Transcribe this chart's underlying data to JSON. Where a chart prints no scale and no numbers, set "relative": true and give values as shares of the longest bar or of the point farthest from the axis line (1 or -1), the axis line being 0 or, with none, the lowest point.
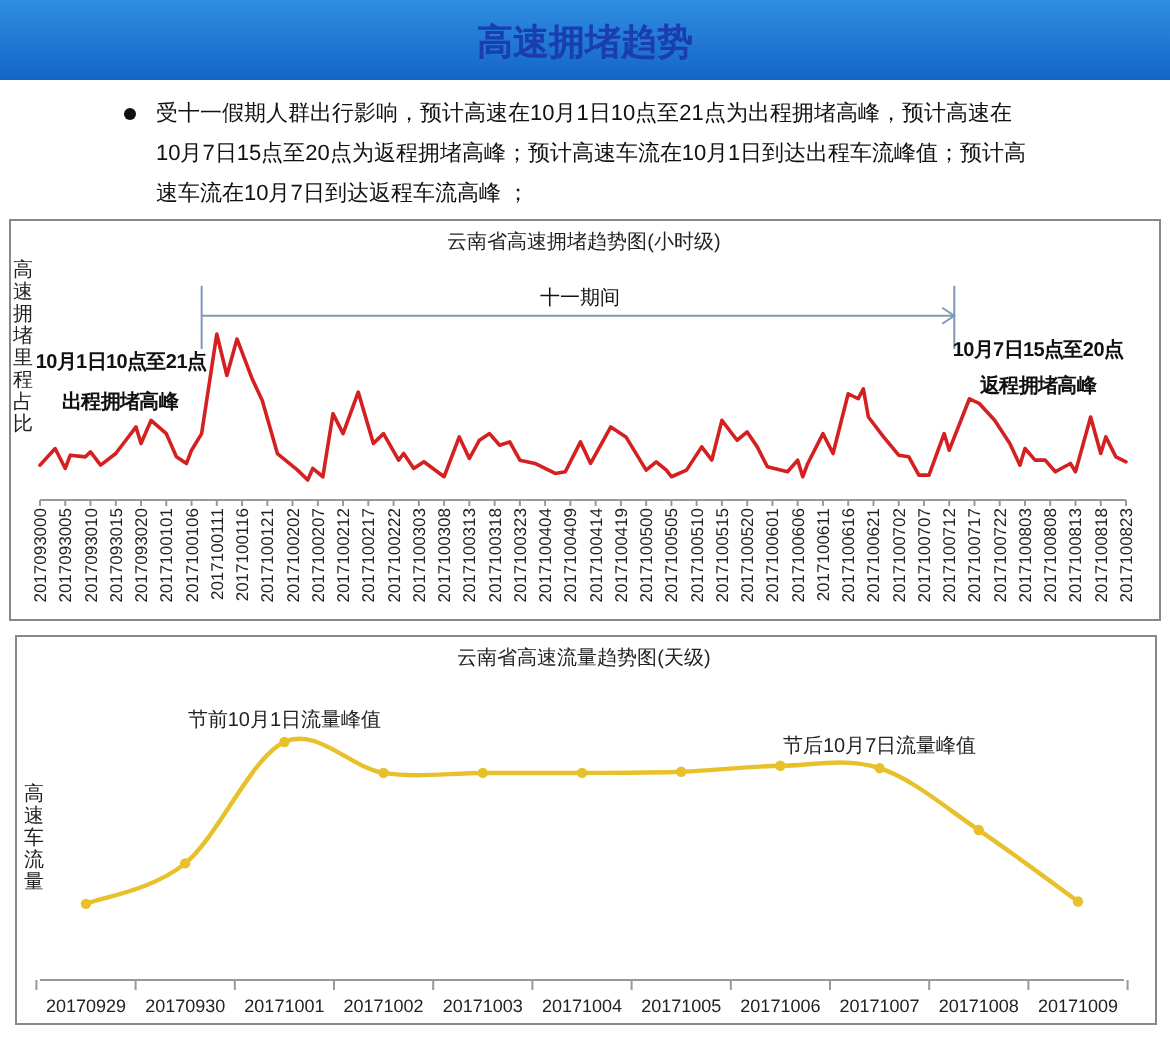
{
  "chart_data": [
    {
      "type": "other",
      "title": "高速拥堵趋势",
      "annotations": [
        "受十一假期人群出行影响，预计高速在10月1日10点至21点为出程拥堵高峰，预计高速在10月7日15点至20点为返程拥堵高峰；预计高速车流在10月1日到达出程车流峰值；预计高速车流在10月7日到达返程车流高峰 ；"
      ]
    },
    {
      "type": "line",
      "title": "云南省高速拥堵趋势图(小时级)",
      "ylabel": "高速拥堵里程占比",
      "relative": true,
      "marker": "none",
      "xlim": [
        "2017-09-30T00:00",
        "2017-10-08T23:00"
      ],
      "xticks": [
        {
          "value": "2017-09-30T00:00",
          "label": "2017093000"
        },
        {
          "value": "2017-09-30T05:00",
          "label": "2017093005"
        },
        {
          "value": "2017-09-30T10:00",
          "label": "2017093010"
        },
        {
          "value": "2017-09-30T15:00",
          "label": "2017093015"
        },
        {
          "value": "2017-09-30T20:00",
          "label": "2017093020"
        },
        {
          "value": "2017-10-01T01:00",
          "label": "2017100101"
        },
        {
          "value": "2017-10-01T06:00",
          "label": "2017100106"
        },
        {
          "value": "2017-10-01T11:00",
          "label": "2017100111"
        },
        {
          "value": "2017-10-01T16:00",
          "label": "2017100116"
        },
        {
          "value": "2017-10-01T21:00",
          "label": "2017100121"
        },
        {
          "value": "2017-10-02T02:00",
          "label": "2017100202"
        },
        {
          "value": "2017-10-02T07:00",
          "label": "2017100207"
        },
        {
          "value": "2017-10-02T12:00",
          "label": "2017100212"
        },
        {
          "value": "2017-10-02T17:00",
          "label": "2017100217"
        },
        {
          "value": "2017-10-02T22:00",
          "label": "2017100222"
        },
        {
          "value": "2017-10-03T03:00",
          "label": "2017100303"
        },
        {
          "value": "2017-10-03T08:00",
          "label": "2017100308"
        },
        {
          "value": "2017-10-03T13:00",
          "label": "2017100313"
        },
        {
          "value": "2017-10-03T18:00",
          "label": "2017100318"
        },
        {
          "value": "2017-10-03T23:00",
          "label": "2017100323"
        },
        {
          "value": "2017-10-04T04:00",
          "label": "2017100404"
        },
        {
          "value": "2017-10-04T09:00",
          "label": "2017100409"
        },
        {
          "value": "2017-10-04T14:00",
          "label": "2017100414"
        },
        {
          "value": "2017-10-04T19:00",
          "label": "2017100419"
        },
        {
          "value": "2017-10-05T00:00",
          "label": "2017100500"
        },
        {
          "value": "2017-10-05T05:00",
          "label": "2017100505"
        },
        {
          "value": "2017-10-05T10:00",
          "label": "2017100510"
        },
        {
          "value": "2017-10-05T15:00",
          "label": "2017100515"
        },
        {
          "value": "2017-10-05T20:00",
          "label": "2017100520"
        },
        {
          "value": "2017-10-06T01:00",
          "label": "2017100601"
        },
        {
          "value": "2017-10-06T06:00",
          "label": "2017100606"
        },
        {
          "value": "2017-10-06T11:00",
          "label": "2017100611"
        },
        {
          "value": "2017-10-06T16:00",
          "label": "2017100616"
        },
        {
          "value": "2017-10-06T21:00",
          "label": "2017100621"
        },
        {
          "value": "2017-10-07T02:00",
          "label": "2017100702"
        },
        {
          "value": "2017-10-07T07:00",
          "label": "2017100707"
        },
        {
          "value": "2017-10-07T12:00",
          "label": "2017100712"
        },
        {
          "value": "2017-10-07T17:00",
          "label": "2017100717"
        },
        {
          "value": "2017-10-07T22:00",
          "label": "2017100722"
        },
        {
          "value": "2017-10-08T03:00",
          "label": "2017100803"
        },
        {
          "value": "2017-10-08T08:00",
          "label": "2017100808"
        },
        {
          "value": "2017-10-08T13:00",
          "label": "2017100813"
        },
        {
          "value": "2017-10-08T18:00",
          "label": "2017100818"
        },
        {
          "value": "2017-10-08T23:00",
          "label": "2017100823"
        }
      ],
      "series": [
        {
          "color": "#d42020",
          "x": [
            "2017-09-30T00:00",
            "2017-09-30T03:00",
            "2017-09-30T05:00",
            "2017-09-30T06:00",
            "2017-09-30T09:00",
            "2017-09-30T10:00",
            "2017-09-30T12:00",
            "2017-09-30T15:00",
            "2017-09-30T17:00",
            "2017-09-30T19:00",
            "2017-09-30T20:00",
            "2017-09-30T22:00",
            "2017-10-01T01:00",
            "2017-10-01T03:00",
            "2017-10-01T05:00",
            "2017-10-01T06:00",
            "2017-10-01T08:00",
            "2017-10-01T11:00",
            "2017-10-01T13:00",
            "2017-10-01T15:00",
            "2017-10-01T18:00",
            "2017-10-01T20:00",
            "2017-10-01T23:00",
            "2017-10-02T01:00",
            "2017-10-02T03:00",
            "2017-10-02T05:00",
            "2017-10-02T06:00",
            "2017-10-02T08:00",
            "2017-10-02T10:00",
            "2017-10-02T12:00",
            "2017-10-02T15:00",
            "2017-10-02T18:00",
            "2017-10-02T20:00",
            "2017-10-02T23:00",
            "2017-10-03T00:00",
            "2017-10-03T02:00",
            "2017-10-03T04:00",
            "2017-10-03T08:00",
            "2017-10-03T11:00",
            "2017-10-03T13:00",
            "2017-10-03T15:00",
            "2017-10-03T17:00",
            "2017-10-03T19:00",
            "2017-10-03T21:00",
            "2017-10-03T23:00",
            "2017-10-04T02:00",
            "2017-10-04T04:00",
            "2017-10-04T06:00",
            "2017-10-04T08:00",
            "2017-10-04T11:00",
            "2017-10-04T13:00",
            "2017-10-04T17:00",
            "2017-10-04T20:00",
            "2017-10-05T00:00",
            "2017-10-05T02:00",
            "2017-10-05T04:00",
            "2017-10-05T05:00",
            "2017-10-05T08:00",
            "2017-10-05T11:00",
            "2017-10-05T13:00",
            "2017-10-05T15:00",
            "2017-10-05T18:00",
            "2017-10-05T20:00",
            "2017-10-05T22:00",
            "2017-10-06T00:00",
            "2017-10-06T04:00",
            "2017-10-06T06:00",
            "2017-10-06T07:00",
            "2017-10-06T08:00",
            "2017-10-06T11:00",
            "2017-10-06T13:00",
            "2017-10-06T16:00",
            "2017-10-06T18:00",
            "2017-10-06T19:00",
            "2017-10-06T20:00",
            "2017-10-06T23:00",
            "2017-10-07T02:00",
            "2017-10-07T04:00",
            "2017-10-07T06:00",
            "2017-10-07T08:00",
            "2017-10-07T11:00",
            "2017-10-07T12:00",
            "2017-10-07T16:00",
            "2017-10-07T18:00",
            "2017-10-07T21:00",
            "2017-10-08T00:00",
            "2017-10-08T02:00",
            "2017-10-08T03:00",
            "2017-10-08T05:00",
            "2017-10-08T07:00",
            "2017-10-08T09:00",
            "2017-10-08T12:00",
            "2017-10-08T13:00",
            "2017-10-08T14:00",
            "2017-10-08T16:00",
            "2017-10-08T18:00",
            "2017-10-08T19:00",
            "2017-10-08T21:00",
            "2017-10-08T23:00"
          ],
          "values": [
            0.21,
            0.31,
            0.19,
            0.27,
            0.26,
            0.29,
            0.21,
            0.28,
            0.36,
            0.44,
            0.34,
            0.48,
            0.4,
            0.26,
            0.22,
            0.3,
            0.4,
            1.0,
            0.75,
            0.97,
            0.73,
            0.6,
            0.28,
            0.23,
            0.18,
            0.12,
            0.19,
            0.14,
            0.52,
            0.4,
            0.65,
            0.34,
            0.4,
            0.24,
            0.28,
            0.19,
            0.23,
            0.14,
            0.38,
            0.25,
            0.36,
            0.4,
            0.33,
            0.35,
            0.24,
            0.22,
            0.19,
            0.16,
            0.17,
            0.35,
            0.22,
            0.44,
            0.38,
            0.18,
            0.23,
            0.18,
            0.14,
            0.18,
            0.32,
            0.24,
            0.48,
            0.36,
            0.41,
            0.32,
            0.2,
            0.17,
            0.24,
            0.14,
            0.22,
            0.4,
            0.28,
            0.64,
            0.61,
            0.67,
            0.5,
            0.38,
            0.27,
            0.26,
            0.15,
            0.15,
            0.4,
            0.3,
            0.61,
            0.58,
            0.48,
            0.34,
            0.21,
            0.31,
            0.24,
            0.24,
            0.17,
            0.22,
            0.17,
            0.28,
            0.5,
            0.28,
            0.38,
            0.26,
            0.23
          ]
        }
      ],
      "ref_lines": [
        {
          "axis": "x",
          "value": "2017-10-01T08:00"
        },
        {
          "axis": "x",
          "value": "2017-10-07T13:00"
        }
      ],
      "annotations": [
        "十一期间",
        "10月1日10点至21点",
        "出程拥堵高峰",
        "10月7日15点至20点",
        "返程拥堵高峰"
      ]
    },
    {
      "type": "line",
      "title": "云南省高速流量趋势图(天级)",
      "ylabel": "高速车流量",
      "relative": true,
      "marker": "circle",
      "categories": [
        "20170929",
        "20170930",
        "20171001",
        "20171002",
        "20171003",
        "20171004",
        "20171005",
        "20171006",
        "20171007",
        "20171008",
        "20171009"
      ],
      "series": [
        {
          "color": "#e8c02a",
          "values": [
            0.32,
            0.49,
            1.0,
            0.87,
            0.87,
            0.87,
            0.875,
            0.9,
            0.89,
            0.63,
            0.33
          ]
        }
      ],
      "annotations": [
        {
          "text": "节前10月1日流量峰值",
          "x": "20171001",
          "y": 1.0
        },
        {
          "text": "节后10月7日流量峰值",
          "x": "20171007",
          "y": 0.89
        }
      ]
    }
  ]
}
